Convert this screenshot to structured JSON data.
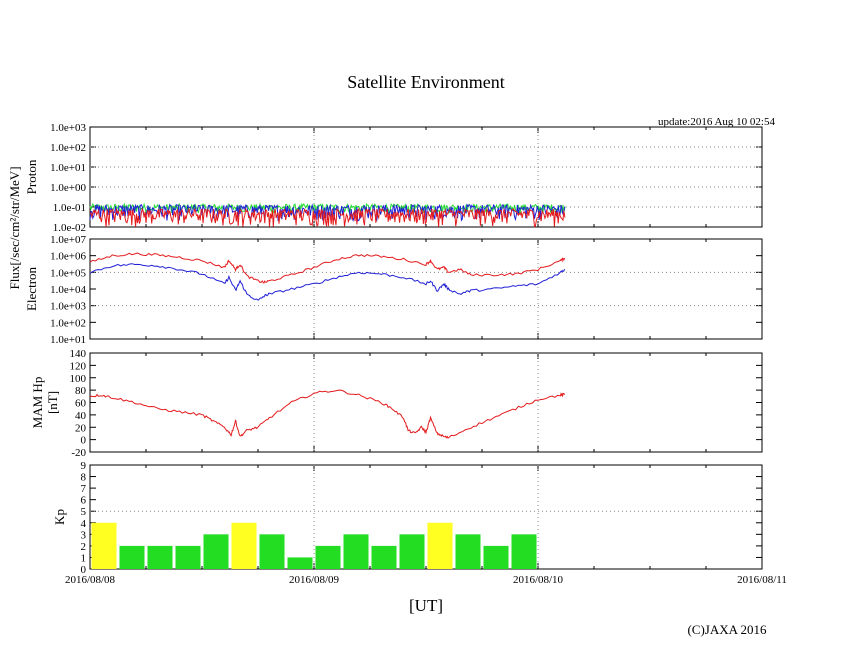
{
  "title": "Satellite Environment",
  "update_text": "update:2016 Aug 10 02:54",
  "copyright": "(C)JAXA 2016",
  "x_axis_label": "[UT]",
  "x_ticks": [
    "2016/08/08",
    "2016/08/09",
    "2016/08/10",
    "2016/08/11"
  ],
  "flux_label": "Flux[/sec/cm²/str/MeV]",
  "colors": {
    "red": "#e41a1c",
    "blue": "#1f1fd6",
    "green": "#22dd33",
    "yellow": "#ffff22",
    "kp_green": "#22dd22",
    "grid": "#888888"
  },
  "chart_data": [
    {
      "type": "line",
      "panel": "proton",
      "ylabel": "Proton",
      "yscale": "log",
      "ylim": [
        0.01,
        1000
      ],
      "y_ticks": [
        "1.0e-02",
        "1.0e-01",
        "1.0e+00",
        "1.0e+01",
        "1.0e+02",
        "1.0e+03"
      ],
      "xlim_days": [
        0,
        3
      ],
      "series": [
        {
          "name": "proton-green",
          "color": "green",
          "baseline": 0.1,
          "noise_low": 0.05,
          "noise_high": 0.14
        },
        {
          "name": "proton-blue",
          "color": "blue",
          "baseline": 0.08,
          "noise_low": 0.02,
          "noise_high": 0.13
        },
        {
          "name": "proton-red",
          "color": "red",
          "baseline": 0.05,
          "noise_low": 0.01,
          "noise_high": 0.08
        }
      ],
      "end_day": 2.12
    },
    {
      "type": "line",
      "panel": "electron",
      "ylabel": "Electron",
      "yscale": "log",
      "ylim": [
        10,
        10000000
      ],
      "y_ticks": [
        "1.0e+01",
        "1.0e+02",
        "1.0e+03",
        "1.0e+04",
        "1.0e+05",
        "1.0e+06",
        "1.0e+07"
      ],
      "xlim_days": [
        0,
        3
      ],
      "series": [
        {
          "name": "electron-red",
          "color": "red",
          "x": [
            0,
            0.1,
            0.2,
            0.3,
            0.4,
            0.5,
            0.6,
            0.62,
            0.65,
            0.67,
            0.7,
            0.75,
            0.78,
            0.8,
            0.9,
            1.0,
            1.1,
            1.2,
            1.3,
            1.4,
            1.5,
            1.52,
            1.55,
            1.58,
            1.6,
            1.65,
            1.7,
            1.8,
            1.9,
            2.0,
            2.1,
            2.12
          ],
          "y": [
            400000,
            1000000,
            1300000,
            1100000,
            800000,
            500000,
            200000,
            500000,
            150000,
            300000,
            60000,
            30000,
            25000,
            30000,
            70000,
            200000,
            600000,
            1100000,
            900000,
            600000,
            300000,
            500000,
            150000,
            200000,
            100000,
            150000,
            70000,
            70000,
            80000,
            150000,
            500000,
            700000
          ]
        },
        {
          "name": "electron-blue",
          "color": "blue",
          "x": [
            0,
            0.1,
            0.2,
            0.3,
            0.4,
            0.5,
            0.6,
            0.62,
            0.65,
            0.67,
            0.7,
            0.75,
            0.78,
            0.8,
            0.9,
            1.0,
            1.1,
            1.2,
            1.3,
            1.4,
            1.5,
            1.52,
            1.55,
            1.58,
            1.6,
            1.65,
            1.7,
            1.8,
            1.9,
            2.0,
            2.1,
            2.12
          ],
          "y": [
            100000,
            250000,
            300000,
            250000,
            150000,
            80000,
            20000,
            50000,
            8000,
            30000,
            5000,
            2000,
            4000,
            5000,
            10000,
            20000,
            50000,
            100000,
            80000,
            50000,
            20000,
            30000,
            8000,
            20000,
            10000,
            5000,
            8000,
            10000,
            15000,
            20000,
            100000,
            150000
          ]
        }
      ],
      "end_day": 2.12
    },
    {
      "type": "line",
      "panel": "hp",
      "ylabel": "MAM Hp [nT]",
      "ylabel_lines": [
        "MAM Hp",
        "[nT]"
      ],
      "ylim": [
        -20,
        140
      ],
      "y_ticks": [
        "-20",
        "0",
        "20",
        "40",
        "60",
        "80",
        "100",
        "120",
        "140"
      ],
      "xlim_days": [
        0,
        3
      ],
      "series": [
        {
          "name": "hp-red",
          "color": "red",
          "x": [
            0,
            0.05,
            0.1,
            0.2,
            0.3,
            0.4,
            0.5,
            0.55,
            0.6,
            0.63,
            0.65,
            0.67,
            0.7,
            0.75,
            0.8,
            0.9,
            1.0,
            1.1,
            1.2,
            1.3,
            1.35,
            1.4,
            1.42,
            1.45,
            1.48,
            1.5,
            1.52,
            1.55,
            1.58,
            1.6,
            1.7,
            1.8,
            1.9,
            2.0,
            2.1,
            2.12
          ],
          "y": [
            70,
            72,
            68,
            60,
            50,
            45,
            40,
            30,
            20,
            8,
            30,
            5,
            15,
            20,
            35,
            60,
            75,
            80,
            72,
            60,
            50,
            35,
            15,
            10,
            20,
            12,
            35,
            10,
            5,
            3,
            20,
            35,
            50,
            65,
            72,
            73
          ]
        }
      ],
      "end_day": 2.12
    },
    {
      "type": "bar",
      "panel": "kp",
      "ylabel": "Kp",
      "ylim": [
        0,
        9
      ],
      "y_ticks": [
        "0",
        "1",
        "2",
        "3",
        "4",
        "5",
        "6",
        "7",
        "8",
        "9"
      ],
      "xlim_days": [
        0,
        3
      ],
      "bar_width_days": 0.125,
      "values": [
        4,
        2,
        2,
        2,
        3,
        4,
        3,
        1,
        2,
        3,
        2,
        3,
        4,
        3,
        2,
        3
      ],
      "highlight_threshold": 4
    }
  ]
}
